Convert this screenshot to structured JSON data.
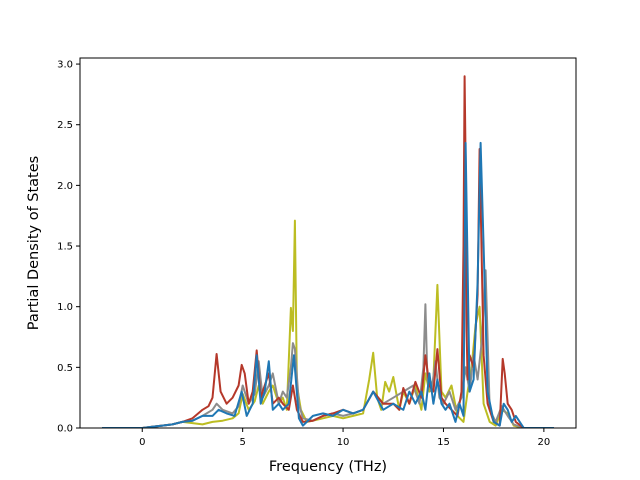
{
  "chart_data": {
    "type": "line",
    "title": "",
    "xlabel": "Frequency (THz)",
    "ylabel": "Partial Density of States",
    "xlim": [
      -3.1,
      21.6
    ],
    "ylim": [
      0,
      3.05
    ],
    "xticks": [
      0,
      5,
      10,
      15,
      20
    ],
    "yticks": [
      0.0,
      0.5,
      1.0,
      1.5,
      2.0,
      2.5,
      3.0
    ],
    "xtick_labels": [
      "0",
      "5",
      "10",
      "15",
      "20"
    ],
    "ytick_labels": [
      "0.0",
      "0.5",
      "1.0",
      "1.5",
      "2.0",
      "2.5",
      "3.0"
    ],
    "grid": false,
    "legend": "none",
    "series": [
      {
        "color": "#bcbd22",
        "x": [
          -2.0,
          -1.0,
          0.0,
          0.5,
          1.0,
          1.5,
          2.0,
          2.5,
          3.0,
          3.5,
          4.0,
          4.5,
          4.8,
          5.0,
          5.3,
          5.6,
          5.8,
          6.0,
          6.3,
          6.5,
          6.8,
          7.0,
          7.2,
          7.4,
          7.5,
          7.6,
          7.7,
          7.9,
          8.2,
          8.5,
          9.0,
          9.5,
          10.0,
          10.5,
          11.0,
          11.3,
          11.5,
          11.7,
          11.9,
          12.1,
          12.3,
          12.5,
          12.8,
          13.0,
          13.3,
          13.6,
          13.9,
          14.1,
          14.3,
          14.5,
          14.7,
          14.9,
          15.1,
          15.4,
          15.7,
          16.0,
          16.2,
          16.4,
          16.6,
          16.8,
          17.0,
          17.3,
          17.6,
          17.9,
          18.2,
          18.5,
          19.0,
          20.5
        ],
        "y": [
          0.0,
          0.0,
          0.0,
          0.01,
          0.02,
          0.03,
          0.05,
          0.04,
          0.03,
          0.05,
          0.06,
          0.08,
          0.12,
          0.28,
          0.15,
          0.22,
          0.35,
          0.2,
          0.3,
          0.35,
          0.2,
          0.25,
          0.15,
          0.99,
          0.8,
          1.71,
          0.35,
          0.15,
          0.05,
          0.06,
          0.08,
          0.1,
          0.08,
          0.1,
          0.12,
          0.4,
          0.62,
          0.25,
          0.15,
          0.38,
          0.3,
          0.42,
          0.15,
          0.3,
          0.2,
          0.35,
          0.15,
          0.45,
          0.3,
          0.4,
          1.18,
          0.3,
          0.25,
          0.35,
          0.1,
          0.05,
          0.3,
          0.5,
          0.85,
          1.0,
          0.2,
          0.05,
          0.02,
          0.15,
          0.12,
          0.02,
          0.0,
          0.0
        ]
      },
      {
        "color": "#8c8c8c",
        "x": [
          -2.0,
          -1.0,
          0.0,
          0.5,
          1.0,
          1.5,
          2.0,
          2.5,
          3.0,
          3.5,
          3.7,
          4.0,
          4.5,
          4.8,
          5.0,
          5.3,
          5.6,
          5.8,
          6.0,
          6.3,
          6.5,
          6.8,
          7.0,
          7.2,
          7.4,
          7.5,
          7.6,
          7.8,
          8.0,
          8.5,
          9.0,
          9.5,
          10.0,
          10.5,
          11.0,
          11.5,
          12.0,
          12.5,
          13.0,
          13.5,
          13.8,
          14.0,
          14.1,
          14.2,
          14.4,
          14.6,
          14.8,
          15.0,
          15.3,
          15.6,
          15.9,
          16.1,
          16.3,
          16.5,
          16.7,
          16.9,
          17.1,
          17.3,
          17.6,
          17.9,
          18.2,
          18.5,
          19.0,
          20.5
        ],
        "y": [
          0.0,
          0.0,
          0.0,
          0.01,
          0.02,
          0.03,
          0.05,
          0.06,
          0.1,
          0.15,
          0.2,
          0.15,
          0.12,
          0.18,
          0.35,
          0.2,
          0.28,
          0.55,
          0.25,
          0.35,
          0.45,
          0.2,
          0.3,
          0.25,
          0.5,
          0.7,
          0.65,
          0.2,
          0.08,
          0.06,
          0.1,
          0.12,
          0.1,
          0.12,
          0.15,
          0.3,
          0.2,
          0.25,
          0.3,
          0.35,
          0.2,
          0.5,
          1.02,
          0.4,
          0.3,
          0.55,
          0.25,
          0.2,
          0.3,
          0.15,
          0.25,
          0.5,
          0.3,
          0.6,
          0.4,
          0.7,
          1.3,
          0.15,
          0.05,
          0.18,
          0.1,
          0.03,
          0.0,
          0.0
        ]
      },
      {
        "color": "#b5382a",
        "x": [
          -2.0,
          -1.0,
          0.0,
          0.5,
          1.0,
          1.5,
          2.0,
          2.5,
          3.0,
          3.3,
          3.5,
          3.7,
          3.9,
          4.2,
          4.5,
          4.8,
          4.95,
          5.1,
          5.3,
          5.5,
          5.7,
          5.9,
          6.1,
          6.3,
          6.5,
          6.8,
          7.0,
          7.3,
          7.5,
          7.7,
          8.0,
          8.5,
          9.0,
          9.5,
          10.0,
          10.5,
          11.0,
          11.5,
          12.0,
          12.5,
          12.8,
          13.0,
          13.3,
          13.6,
          13.9,
          14.1,
          14.3,
          14.5,
          14.7,
          14.9,
          15.1,
          15.4,
          15.7,
          15.9,
          16.0,
          16.05,
          16.1,
          16.15,
          16.2,
          16.3,
          16.5,
          16.7,
          16.8,
          17.0,
          17.2,
          17.5,
          17.8,
          17.95,
          18.05,
          18.2,
          18.4,
          18.6,
          19.0,
          20.5
        ],
        "y": [
          0.0,
          0.0,
          0.0,
          0.01,
          0.02,
          0.03,
          0.05,
          0.08,
          0.15,
          0.18,
          0.25,
          0.61,
          0.3,
          0.2,
          0.25,
          0.35,
          0.52,
          0.45,
          0.2,
          0.3,
          0.64,
          0.25,
          0.35,
          0.45,
          0.2,
          0.25,
          0.2,
          0.15,
          0.35,
          0.15,
          0.05,
          0.06,
          0.1,
          0.12,
          0.15,
          0.12,
          0.15,
          0.3,
          0.2,
          0.2,
          0.15,
          0.33,
          0.2,
          0.38,
          0.25,
          0.6,
          0.35,
          0.3,
          0.65,
          0.25,
          0.2,
          0.15,
          0.1,
          0.3,
          1.5,
          2.9,
          2.2,
          0.8,
          0.4,
          0.6,
          0.5,
          1.1,
          2.3,
          0.6,
          0.2,
          0.05,
          0.02,
          0.57,
          0.45,
          0.2,
          0.15,
          0.05,
          0.0,
          0.0
        ]
      },
      {
        "color": "#1f77b4",
        "x": [
          -2.0,
          -1.0,
          0.0,
          0.5,
          1.0,
          1.5,
          2.0,
          2.5,
          3.0,
          3.5,
          3.8,
          4.2,
          4.6,
          4.95,
          5.2,
          5.5,
          5.7,
          5.9,
          6.1,
          6.3,
          6.5,
          6.8,
          7.0,
          7.3,
          7.55,
          7.8,
          8.0,
          8.5,
          9.0,
          9.5,
          10.0,
          10.5,
          11.0,
          11.5,
          12.0,
          12.5,
          13.0,
          13.3,
          13.6,
          13.9,
          14.1,
          14.3,
          14.5,
          14.7,
          14.9,
          15.1,
          15.3,
          15.6,
          15.8,
          16.0,
          16.1,
          16.3,
          16.5,
          16.7,
          16.85,
          17.0,
          17.2,
          17.5,
          17.8,
          18.0,
          18.2,
          18.4,
          18.6,
          19.0,
          20.5
        ],
        "y": [
          0.0,
          0.0,
          0.0,
          0.01,
          0.02,
          0.03,
          0.05,
          0.06,
          0.1,
          0.1,
          0.15,
          0.12,
          0.1,
          0.3,
          0.1,
          0.2,
          0.6,
          0.2,
          0.3,
          0.55,
          0.15,
          0.2,
          0.15,
          0.2,
          0.6,
          0.08,
          0.02,
          0.1,
          0.12,
          0.1,
          0.15,
          0.12,
          0.15,
          0.3,
          0.15,
          0.2,
          0.15,
          0.3,
          0.2,
          0.3,
          0.15,
          0.45,
          0.2,
          0.4,
          0.2,
          0.15,
          0.2,
          0.05,
          0.2,
          0.1,
          2.35,
          0.3,
          0.4,
          1.2,
          2.35,
          1.5,
          0.3,
          0.05,
          0.02,
          0.2,
          0.15,
          0.05,
          0.1,
          0.0,
          0.0
        ]
      }
    ]
  }
}
